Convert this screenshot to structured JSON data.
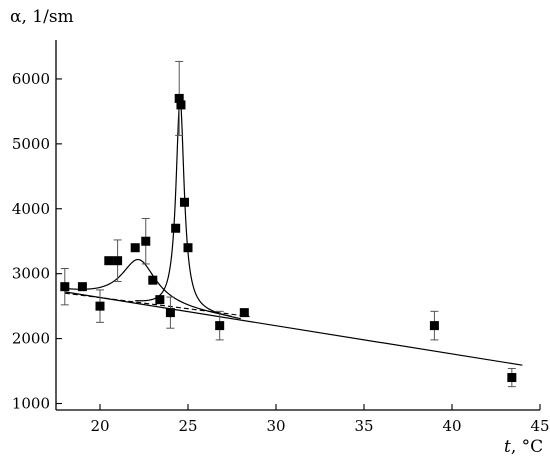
{
  "chart_data": {
    "type": "scatter",
    "title": "",
    "xlabel_var": "t",
    "xlabel_unit": ", °C",
    "ylabel": "α, 1/sm",
    "xlim": [
      17.5,
      45
    ],
    "ylim": [
      900,
      6600
    ],
    "xticks": [
      20,
      25,
      30,
      35,
      40,
      45
    ],
    "yticks": [
      1000,
      2000,
      3000,
      4000,
      5000,
      6000
    ],
    "grid": false,
    "points": [
      {
        "x": 18.0,
        "y": 2800,
        "err": 280
      },
      {
        "x": 19.0,
        "y": 2800,
        "err": 0
      },
      {
        "x": 20.0,
        "y": 2500,
        "err": 250
      },
      {
        "x": 20.5,
        "y": 3200,
        "err": 0
      },
      {
        "x": 21.0,
        "y": 3200,
        "err": 320
      },
      {
        "x": 22.0,
        "y": 3400,
        "err": 0
      },
      {
        "x": 22.6,
        "y": 3500,
        "err": 350
      },
      {
        "x": 23.0,
        "y": 2900,
        "err": 0
      },
      {
        "x": 23.4,
        "y": 2600,
        "err": 0
      },
      {
        "x": 24.0,
        "y": 2400,
        "err": 240
      },
      {
        "x": 24.3,
        "y": 3700,
        "err": 0
      },
      {
        "x": 24.5,
        "y": 5700,
        "err": 570
      },
      {
        "x": 24.6,
        "y": 5600,
        "err": 0
      },
      {
        "x": 24.8,
        "y": 4100,
        "err": 0
      },
      {
        "x": 25.0,
        "y": 3400,
        "err": 0
      },
      {
        "x": 26.8,
        "y": 2200,
        "err": 220
      },
      {
        "x": 28.2,
        "y": 2400,
        "err": 0
      },
      {
        "x": 39.0,
        "y": 2200,
        "err": 220
      },
      {
        "x": 43.4,
        "y": 1400,
        "err": 140
      }
    ],
    "baseline_line": {
      "x": [
        18.0,
        44.0
      ],
      "y": [
        2720,
        1590
      ]
    },
    "dashed_line": {
      "x": [
        18.0,
        28.5
      ],
      "y": [
        2700,
        2340
      ]
    },
    "peak1": {
      "center": 22.2,
      "height": 680,
      "width": 1.2
    },
    "peak2": {
      "center": 24.55,
      "height": 3260,
      "width": 0.28
    }
  }
}
